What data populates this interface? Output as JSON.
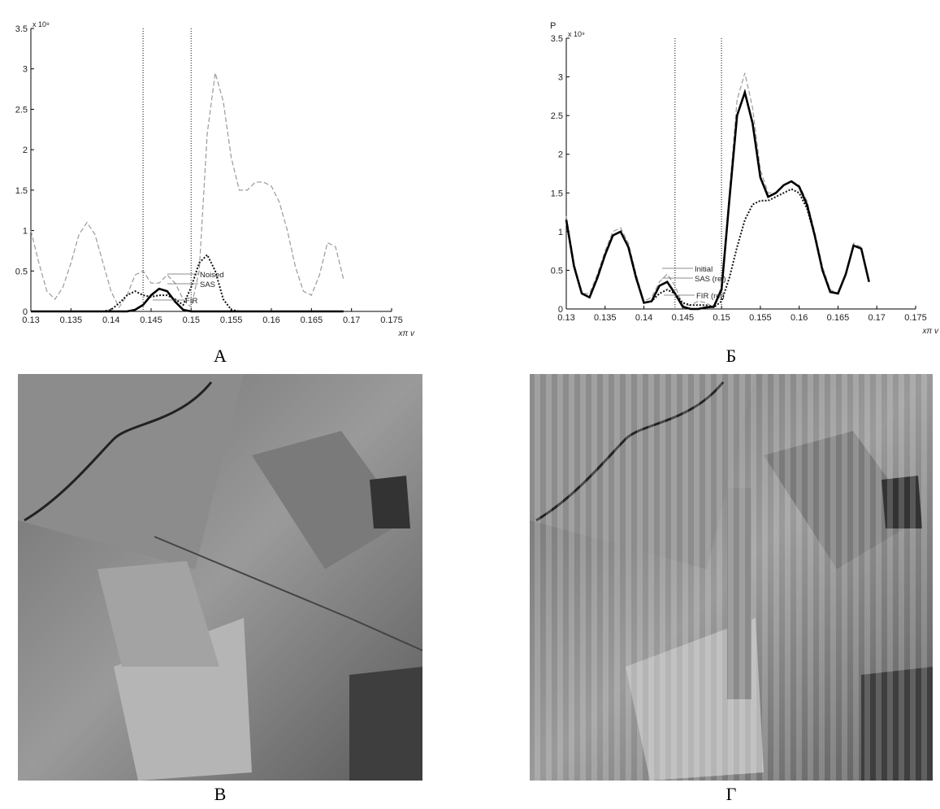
{
  "chart_data": [
    {
      "type": "line",
      "caption": "А",
      "y_multiplier": "x 10⁹",
      "xlabel": "xπ v",
      "ylabel": null,
      "x": [
        0.13,
        0.131,
        0.132,
        0.133,
        0.134,
        0.135,
        0.136,
        0.137,
        0.138,
        0.139,
        0.14,
        0.141,
        0.142,
        0.143,
        0.144,
        0.145,
        0.146,
        0.147,
        0.148,
        0.149,
        0.15,
        0.151,
        0.152,
        0.153,
        0.154,
        0.155,
        0.156,
        0.157,
        0.158,
        0.159,
        0.16,
        0.161,
        0.162,
        0.163,
        0.164,
        0.165,
        0.166,
        0.167,
        0.168,
        0.169
      ],
      "series": [
        {
          "name": "Noised",
          "color": "#9a9a9a",
          "style": "dashed",
          "values": [
            1.0,
            0.6,
            0.25,
            0.15,
            0.3,
            0.6,
            0.95,
            1.1,
            0.95,
            0.6,
            0.25,
            0.05,
            0.2,
            0.45,
            0.5,
            0.35,
            0.35,
            0.45,
            0.35,
            0.15,
            0.05,
            0.5,
            2.2,
            2.95,
            2.6,
            1.9,
            1.5,
            1.5,
            1.6,
            1.6,
            1.55,
            1.35,
            1.0,
            0.55,
            0.25,
            0.2,
            0.45,
            0.85,
            0.8,
            0.4
          ]
        },
        {
          "name": "SAS",
          "color": "#111111",
          "style": "dotted",
          "values": [
            0,
            0,
            0,
            0,
            0,
            0,
            0,
            0,
            0,
            0,
            0.02,
            0.1,
            0.2,
            0.25,
            0.2,
            0.18,
            0.2,
            0.2,
            0.15,
            0.08,
            0.3,
            0.6,
            0.7,
            0.5,
            0.15,
            0.02,
            0,
            0,
            0,
            0,
            0,
            0,
            0,
            0,
            0,
            0,
            0,
            0,
            0,
            0
          ]
        },
        {
          "name": "FIR",
          "color": "#000000",
          "style": "solid",
          "values": [
            0,
            0,
            0,
            0,
            0,
            0,
            0,
            0,
            0,
            0,
            0,
            0,
            0,
            0.02,
            0.08,
            0.2,
            0.28,
            0.25,
            0.12,
            0.02,
            0,
            0,
            0,
            0,
            0,
            0,
            0,
            0,
            0,
            0,
            0,
            0,
            0,
            0,
            0,
            0,
            0,
            0,
            0,
            0
          ]
        }
      ],
      "vlines": [
        0.144,
        0.15
      ],
      "xlim": [
        0.13,
        0.175
      ],
      "xticks": [
        0.13,
        0.135,
        0.14,
        0.145,
        0.15,
        0.155,
        0.16,
        0.165,
        0.17,
        0.175
      ],
      "ylim": [
        0,
        3.5
      ],
      "yticks": [
        0,
        0.5,
        1,
        1.5,
        2,
        2.5,
        3,
        3.5
      ]
    },
    {
      "type": "line",
      "caption": "Б",
      "y_multiplier": "x 10⁹",
      "xlabel": "xπ v",
      "ylabel": "P",
      "x": [
        0.13,
        0.131,
        0.132,
        0.133,
        0.134,
        0.135,
        0.136,
        0.137,
        0.138,
        0.139,
        0.14,
        0.141,
        0.142,
        0.143,
        0.144,
        0.145,
        0.146,
        0.147,
        0.148,
        0.149,
        0.15,
        0.151,
        0.152,
        0.153,
        0.154,
        0.155,
        0.156,
        0.157,
        0.158,
        0.159,
        0.16,
        0.161,
        0.162,
        0.163,
        0.164,
        0.165,
        0.166,
        0.167,
        0.168,
        0.169
      ],
      "series": [
        {
          "name": "Initial",
          "color": "#9a9a9a",
          "style": "dashed",
          "values": [
            1.2,
            0.6,
            0.2,
            0.2,
            0.45,
            0.75,
            1.0,
            1.05,
            0.85,
            0.45,
            0.1,
            0.15,
            0.35,
            0.45,
            0.3,
            0.05,
            0.05,
            0.1,
            0.08,
            0.02,
            0.3,
            1.5,
            2.7,
            3.05,
            2.6,
            1.8,
            1.5,
            1.5,
            1.6,
            1.65,
            1.6,
            1.4,
            1.0,
            0.55,
            0.25,
            0.2,
            0.45,
            0.85,
            0.8,
            0.35
          ]
        },
        {
          "name": "SAS (rej)",
          "color": "#111111",
          "style": "dotted",
          "values": [
            1.15,
            0.55,
            0.2,
            0.15,
            0.4,
            0.7,
            0.95,
            1.0,
            0.8,
            0.4,
            0.08,
            0.1,
            0.2,
            0.25,
            0.2,
            0.08,
            0.05,
            0.05,
            0.05,
            0.02,
            0.1,
            0.4,
            0.8,
            1.15,
            1.35,
            1.4,
            1.4,
            1.45,
            1.5,
            1.55,
            1.5,
            1.3,
            0.95,
            0.5,
            0.22,
            0.2,
            0.45,
            0.82,
            0.78,
            0.35
          ]
        },
        {
          "name": "FIR (rej)",
          "color": "#000000",
          "style": "solid",
          "values": [
            1.15,
            0.55,
            0.2,
            0.15,
            0.4,
            0.7,
            0.95,
            1.0,
            0.8,
            0.4,
            0.08,
            0.1,
            0.3,
            0.35,
            0.2,
            0.03,
            0.0,
            0.0,
            0.02,
            0.03,
            0.25,
            1.4,
            2.5,
            2.8,
            2.4,
            1.7,
            1.45,
            1.5,
            1.6,
            1.65,
            1.58,
            1.35,
            0.95,
            0.5,
            0.22,
            0.2,
            0.45,
            0.82,
            0.78,
            0.35
          ]
        }
      ],
      "vlines": [
        0.144,
        0.15
      ],
      "xlim": [
        0.13,
        0.175
      ],
      "xticks": [
        0.13,
        0.135,
        0.14,
        0.145,
        0.15,
        0.155,
        0.16,
        0.165,
        0.17,
        0.175
      ],
      "ylim": [
        0,
        3.5
      ],
      "yticks": [
        0,
        0.5,
        1,
        1.5,
        2,
        2.5,
        3,
        3.5
      ]
    }
  ],
  "panels": [
    {
      "caption": "В"
    },
    {
      "caption": "Г"
    }
  ]
}
